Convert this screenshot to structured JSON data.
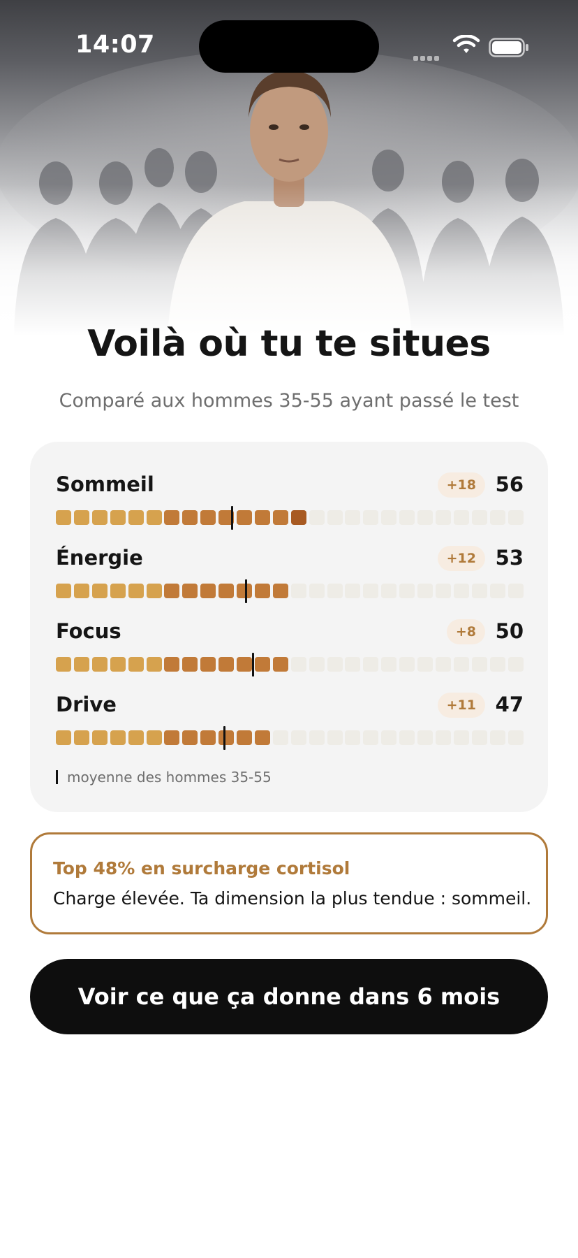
{
  "status_bar": {
    "time": "14:07"
  },
  "header": {
    "title": "Voilà où tu te situes",
    "subtitle": "Comparé aux hommes 35-55 ayant passé le test"
  },
  "score_card": {
    "segments_total": 26,
    "metrics": [
      {
        "name": "Sommeil",
        "delta": "+18",
        "score": "56",
        "filled_segments": 14,
        "average_position": 0.374
      },
      {
        "name": "Énergie",
        "delta": "+12",
        "score": "53",
        "filled_segments": 13,
        "average_position": 0.405
      },
      {
        "name": "Focus",
        "delta": "+8",
        "score": "50",
        "filled_segments": 13,
        "average_position": 0.42
      },
      {
        "name": "Drive",
        "delta": "+11",
        "score": "47",
        "filled_segments": 12,
        "average_position": 0.358
      }
    ],
    "legend": "moyenne des hommes 35-55"
  },
  "insight": {
    "title": "Top 48% en surcharge cortisol",
    "text": "Charge élevée. Ta dimension la plus tendue : sommeil."
  },
  "cta": {
    "label": "Voir ce que ça donne dans 6 mois"
  },
  "colors": {
    "accent": "#b07a3a",
    "segment_light": "#d6a24e",
    "segment_mid": "#c17a38",
    "segment_dark": "#a85a22",
    "segment_empty": "#eeece6",
    "delta_badge_bg": "#f7ece1",
    "cta_bg": "#0e0e0e",
    "card_bg": "#f4f4f4"
  },
  "icons": {
    "signal": "cellular-signal-icon",
    "wifi": "wifi-icon",
    "battery": "battery-icon"
  }
}
